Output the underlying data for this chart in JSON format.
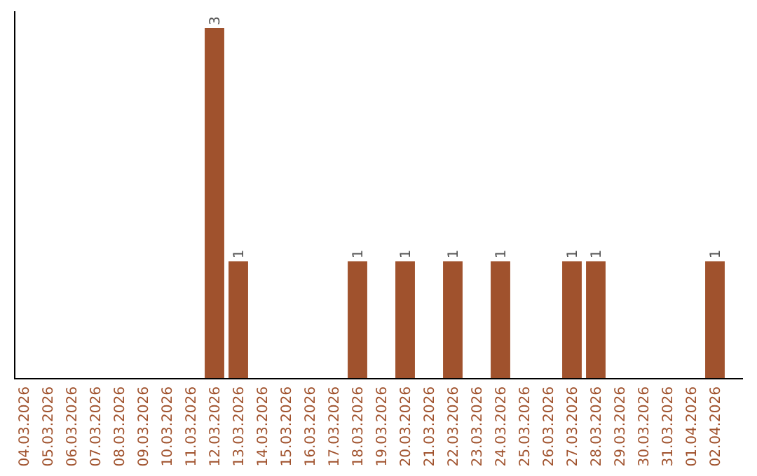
{
  "chart_data": {
    "type": "bar",
    "categories": [
      "04.03.2026",
      "05.03.2026",
      "06.03.2026",
      "07.03.2026",
      "08.03.2026",
      "09.03.2026",
      "10.03.2026",
      "11.03.2026",
      "12.03.2026",
      "13.03.2026",
      "14.03.2026",
      "15.03.2026",
      "16.03.2026",
      "17.03.2026",
      "18.03.2026",
      "19.03.2026",
      "20.03.2026",
      "21.03.2026",
      "22.03.2026",
      "23.03.2026",
      "24.03.2026",
      "25.03.2026",
      "26.03.2026",
      "27.03.2026",
      "28.03.2026",
      "29.03.2026",
      "30.03.2026",
      "31.03.2026",
      "01.04.2026",
      "02.04.2026"
    ],
    "values": [
      0,
      0,
      0,
      0,
      0,
      0,
      0,
      0,
      3,
      1,
      0,
      0,
      0,
      0,
      1,
      0,
      1,
      0,
      1,
      0,
      1,
      0,
      0,
      1,
      1,
      0,
      0,
      0,
      0,
      1
    ],
    "value_labels": [
      null,
      null,
      null,
      null,
      null,
      null,
      null,
      null,
      "3",
      "1",
      null,
      null,
      null,
      null,
      "1",
      null,
      "1",
      null,
      "1",
      null,
      "1",
      null,
      null,
      "1",
      "1",
      null,
      null,
      null,
      null,
      "1"
    ],
    "color": "#a0522d"
  }
}
